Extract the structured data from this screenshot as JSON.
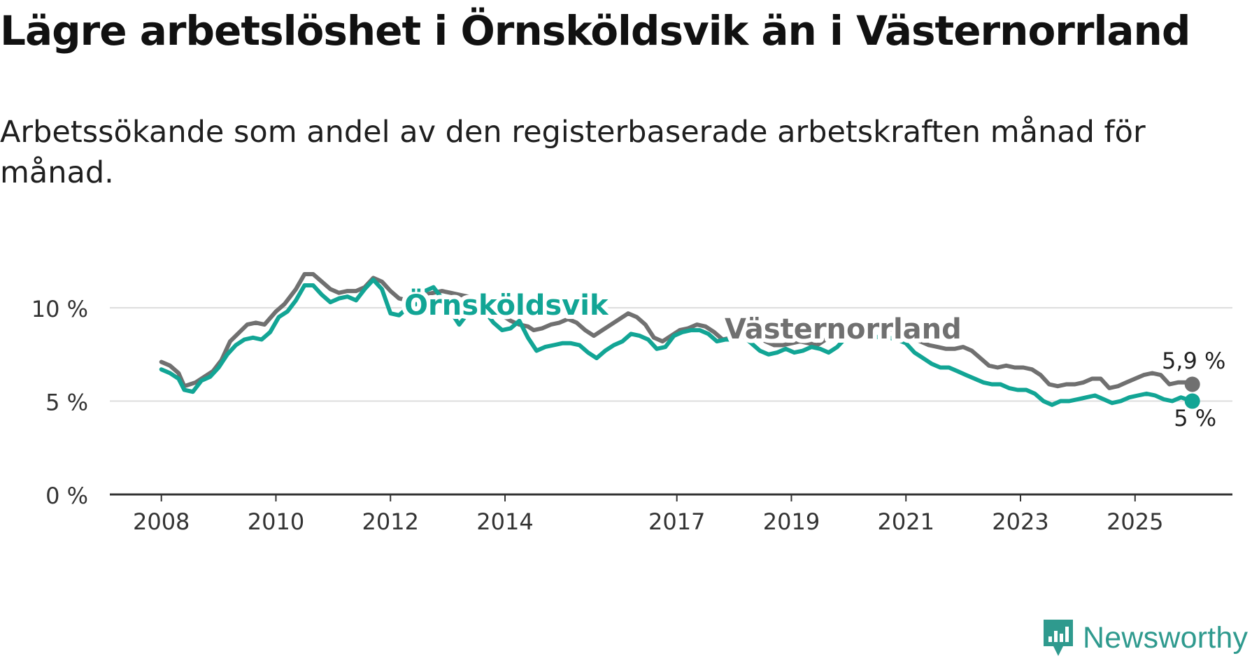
{
  "title": "Lägre arbetslöshet i Örnsköldsvik än i Västernorrland",
  "subtitle": "Arbetssökande som andel av den registerbaserade arbetskraften månad för månad.",
  "brand": {
    "name": "Newsworthy",
    "color": "#2f9a8e"
  },
  "colors": {
    "ornskoldsvik": "#12a595",
    "vasternorrland": "#707070",
    "grid": "#dddddd",
    "axis": "#333333"
  },
  "chart_data": {
    "type": "line",
    "title": "Lägre arbetslöshet i Örnsköldsvik än i Västernorrland",
    "xlabel": "",
    "ylabel": "",
    "x_ticks": [
      "2008",
      "2010",
      "2012",
      "2014",
      "2017",
      "2019",
      "2021",
      "2023",
      "2025"
    ],
    "x_tick_values": [
      2008,
      2010,
      2012,
      2014,
      2017,
      2019,
      2021,
      2023,
      2025
    ],
    "y_ticks": [
      "0 %",
      "5 %",
      "10 %"
    ],
    "y_tick_values": [
      0,
      5,
      10
    ],
    "xlim": [
      2007.1,
      2026.7
    ],
    "ylim": [
      0,
      13
    ],
    "series": [
      {
        "name": "Västernorrland",
        "label": "Västernorrland",
        "color": "#707070",
        "end_label": "5,9 %",
        "points": [
          [
            2008.0,
            7.1
          ],
          [
            2008.15,
            6.9
          ],
          [
            2008.3,
            6.5
          ],
          [
            2008.4,
            5.8
          ],
          [
            2008.6,
            6.0
          ],
          [
            2008.75,
            6.3
          ],
          [
            2008.9,
            6.6
          ],
          [
            2009.05,
            7.2
          ],
          [
            2009.2,
            8.2
          ],
          [
            2009.4,
            8.8
          ],
          [
            2009.5,
            9.1
          ],
          [
            2009.65,
            9.2
          ],
          [
            2009.8,
            9.1
          ],
          [
            2010.0,
            9.8
          ],
          [
            2010.15,
            10.2
          ],
          [
            2010.35,
            11.0
          ],
          [
            2010.5,
            11.8
          ],
          [
            2010.65,
            11.8
          ],
          [
            2010.8,
            11.4
          ],
          [
            2010.95,
            11.0
          ],
          [
            2011.1,
            10.8
          ],
          [
            2011.25,
            10.9
          ],
          [
            2011.4,
            10.9
          ],
          [
            2011.55,
            11.1
          ],
          [
            2011.7,
            11.6
          ],
          [
            2011.85,
            11.4
          ],
          [
            2012.0,
            10.9
          ],
          [
            2012.15,
            10.5
          ],
          [
            2012.3,
            10.4
          ],
          [
            2012.45,
            10.6
          ],
          [
            2012.6,
            10.7
          ],
          [
            2012.75,
            10.8
          ],
          [
            2012.9,
            10.9
          ],
          [
            2013.05,
            10.8
          ],
          [
            2013.2,
            10.7
          ],
          [
            2013.35,
            10.6
          ],
          [
            2013.5,
            10.3
          ],
          [
            2013.65,
            10.1
          ],
          [
            2013.8,
            9.9
          ],
          [
            2013.95,
            9.6
          ],
          [
            2014.1,
            9.3
          ],
          [
            2014.25,
            9.1
          ],
          [
            2014.4,
            9.0
          ],
          [
            2014.5,
            8.8
          ],
          [
            2014.65,
            8.9
          ],
          [
            2014.8,
            9.1
          ],
          [
            2014.95,
            9.2
          ],
          [
            2015.1,
            9.4
          ],
          [
            2015.25,
            9.2
          ],
          [
            2015.4,
            8.8
          ],
          [
            2015.55,
            8.5
          ],
          [
            2015.7,
            8.8
          ],
          [
            2015.85,
            9.1
          ],
          [
            2016.0,
            9.4
          ],
          [
            2016.15,
            9.7
          ],
          [
            2016.3,
            9.5
          ],
          [
            2016.45,
            9.1
          ],
          [
            2016.6,
            8.4
          ],
          [
            2016.75,
            8.2
          ],
          [
            2016.9,
            8.5
          ],
          [
            2017.05,
            8.8
          ],
          [
            2017.2,
            8.9
          ],
          [
            2017.35,
            9.1
          ],
          [
            2017.5,
            9.0
          ],
          [
            2017.65,
            8.7
          ],
          [
            2017.8,
            8.3
          ],
          [
            2017.95,
            8.4
          ],
          [
            2018.1,
            8.6
          ],
          [
            2018.25,
            8.7
          ],
          [
            2018.4,
            8.5
          ],
          [
            2018.55,
            8.2
          ],
          [
            2018.7,
            8.0
          ],
          [
            2018.85,
            8.0
          ],
          [
            2019.0,
            8.1
          ],
          [
            2019.15,
            8.2
          ],
          [
            2019.3,
            8.1
          ],
          [
            2019.45,
            8.0
          ],
          [
            2019.6,
            8.3
          ],
          [
            2019.75,
            8.6
          ],
          [
            2019.9,
            8.8
          ],
          [
            2020.05,
            8.9
          ],
          [
            2020.2,
            9.0
          ],
          [
            2020.35,
            9.2
          ],
          [
            2020.5,
            9.0
          ],
          [
            2020.65,
            8.9
          ],
          [
            2020.8,
            8.8
          ],
          [
            2020.95,
            8.6
          ],
          [
            2021.1,
            8.4
          ],
          [
            2021.25,
            8.2
          ],
          [
            2021.4,
            8.0
          ],
          [
            2021.55,
            7.9
          ],
          [
            2021.7,
            7.8
          ],
          [
            2021.85,
            7.8
          ],
          [
            2022.0,
            7.9
          ],
          [
            2022.15,
            7.7
          ],
          [
            2022.3,
            7.3
          ],
          [
            2022.45,
            6.9
          ],
          [
            2022.6,
            6.8
          ],
          [
            2022.75,
            6.9
          ],
          [
            2022.9,
            6.8
          ],
          [
            2023.05,
            6.8
          ],
          [
            2023.2,
            6.7
          ],
          [
            2023.35,
            6.4
          ],
          [
            2023.5,
            5.9
          ],
          [
            2023.65,
            5.8
          ],
          [
            2023.8,
            5.9
          ],
          [
            2023.95,
            5.9
          ],
          [
            2024.1,
            6.0
          ],
          [
            2024.25,
            6.2
          ],
          [
            2024.4,
            6.2
          ],
          [
            2024.55,
            5.7
          ],
          [
            2024.7,
            5.8
          ],
          [
            2024.85,
            6.0
          ],
          [
            2025.0,
            6.2
          ],
          [
            2025.15,
            6.4
          ],
          [
            2025.3,
            6.5
          ],
          [
            2025.45,
            6.4
          ],
          [
            2025.6,
            5.9
          ],
          [
            2025.75,
            6.0
          ],
          [
            2025.9,
            6.0
          ],
          [
            2026.0,
            5.9
          ]
        ]
      },
      {
        "name": "Örnsköldsvik",
        "label": "Örnsköldsvik",
        "color": "#12a595",
        "end_label": "5 %",
        "points": [
          [
            2008.0,
            6.7
          ],
          [
            2008.15,
            6.5
          ],
          [
            2008.3,
            6.2
          ],
          [
            2008.4,
            5.6
          ],
          [
            2008.55,
            5.5
          ],
          [
            2008.7,
            6.1
          ],
          [
            2008.85,
            6.3
          ],
          [
            2009.0,
            6.8
          ],
          [
            2009.15,
            7.5
          ],
          [
            2009.3,
            8.0
          ],
          [
            2009.45,
            8.3
          ],
          [
            2009.6,
            8.4
          ],
          [
            2009.75,
            8.3
          ],
          [
            2009.9,
            8.7
          ],
          [
            2010.05,
            9.5
          ],
          [
            2010.2,
            9.8
          ],
          [
            2010.35,
            10.4
          ],
          [
            2010.5,
            11.2
          ],
          [
            2010.65,
            11.2
          ],
          [
            2010.8,
            10.7
          ],
          [
            2010.95,
            10.3
          ],
          [
            2011.1,
            10.5
          ],
          [
            2011.25,
            10.6
          ],
          [
            2011.4,
            10.4
          ],
          [
            2011.55,
            11.0
          ],
          [
            2011.7,
            11.5
          ],
          [
            2011.85,
            11.0
          ],
          [
            2012.0,
            9.7
          ],
          [
            2012.15,
            9.6
          ],
          [
            2012.3,
            10.0
          ],
          [
            2012.45,
            10.2
          ],
          [
            2012.6,
            10.9
          ],
          [
            2012.75,
            11.1
          ],
          [
            2012.9,
            10.5
          ],
          [
            2013.05,
            9.8
          ],
          [
            2013.2,
            9.1
          ],
          [
            2013.35,
            9.7
          ],
          [
            2013.5,
            10.0
          ],
          [
            2013.65,
            9.8
          ],
          [
            2013.8,
            9.2
          ],
          [
            2013.95,
            8.8
          ],
          [
            2014.1,
            8.9
          ],
          [
            2014.25,
            9.3
          ],
          [
            2014.4,
            8.4
          ],
          [
            2014.55,
            7.7
          ],
          [
            2014.7,
            7.9
          ],
          [
            2014.85,
            8.0
          ],
          [
            2015.0,
            8.1
          ],
          [
            2015.15,
            8.1
          ],
          [
            2015.3,
            8.0
          ],
          [
            2015.45,
            7.6
          ],
          [
            2015.6,
            7.3
          ],
          [
            2015.75,
            7.7
          ],
          [
            2015.9,
            8.0
          ],
          [
            2016.05,
            8.2
          ],
          [
            2016.2,
            8.6
          ],
          [
            2016.35,
            8.5
          ],
          [
            2016.5,
            8.3
          ],
          [
            2016.65,
            7.8
          ],
          [
            2016.8,
            7.9
          ],
          [
            2016.95,
            8.5
          ],
          [
            2017.1,
            8.7
          ],
          [
            2017.25,
            8.8
          ],
          [
            2017.4,
            8.8
          ],
          [
            2017.55,
            8.6
          ],
          [
            2017.7,
            8.2
          ],
          [
            2017.85,
            8.3
          ],
          [
            2018.0,
            8.3
          ],
          [
            2018.15,
            8.5
          ],
          [
            2018.3,
            8.1
          ],
          [
            2018.45,
            7.7
          ],
          [
            2018.6,
            7.5
          ],
          [
            2018.75,
            7.6
          ],
          [
            2018.9,
            7.8
          ],
          [
            2019.05,
            7.6
          ],
          [
            2019.2,
            7.7
          ],
          [
            2019.35,
            7.9
          ],
          [
            2019.5,
            7.8
          ],
          [
            2019.65,
            7.6
          ],
          [
            2019.8,
            7.9
          ],
          [
            2019.95,
            8.4
          ],
          [
            2020.1,
            8.6
          ],
          [
            2020.25,
            8.7
          ],
          [
            2020.4,
            8.5
          ],
          [
            2020.55,
            8.4
          ],
          [
            2020.7,
            8.4
          ],
          [
            2020.85,
            8.3
          ],
          [
            2021.0,
            8.1
          ],
          [
            2021.15,
            7.6
          ],
          [
            2021.3,
            7.3
          ],
          [
            2021.45,
            7.0
          ],
          [
            2021.6,
            6.8
          ],
          [
            2021.75,
            6.8
          ],
          [
            2021.9,
            6.6
          ],
          [
            2022.05,
            6.4
          ],
          [
            2022.2,
            6.2
          ],
          [
            2022.35,
            6.0
          ],
          [
            2022.5,
            5.9
          ],
          [
            2022.65,
            5.9
          ],
          [
            2022.8,
            5.7
          ],
          [
            2022.95,
            5.6
          ],
          [
            2023.1,
            5.6
          ],
          [
            2023.25,
            5.4
          ],
          [
            2023.4,
            5.0
          ],
          [
            2023.55,
            4.8
          ],
          [
            2023.7,
            5.0
          ],
          [
            2023.85,
            5.0
          ],
          [
            2024.0,
            5.1
          ],
          [
            2024.15,
            5.2
          ],
          [
            2024.3,
            5.3
          ],
          [
            2024.45,
            5.1
          ],
          [
            2024.6,
            4.9
          ],
          [
            2024.75,
            5.0
          ],
          [
            2024.9,
            5.2
          ],
          [
            2025.05,
            5.3
          ],
          [
            2025.2,
            5.4
          ],
          [
            2025.35,
            5.3
          ],
          [
            2025.5,
            5.1
          ],
          [
            2025.65,
            5.0
          ],
          [
            2025.8,
            5.2
          ],
          [
            2026.0,
            5.0
          ]
        ]
      }
    ]
  }
}
